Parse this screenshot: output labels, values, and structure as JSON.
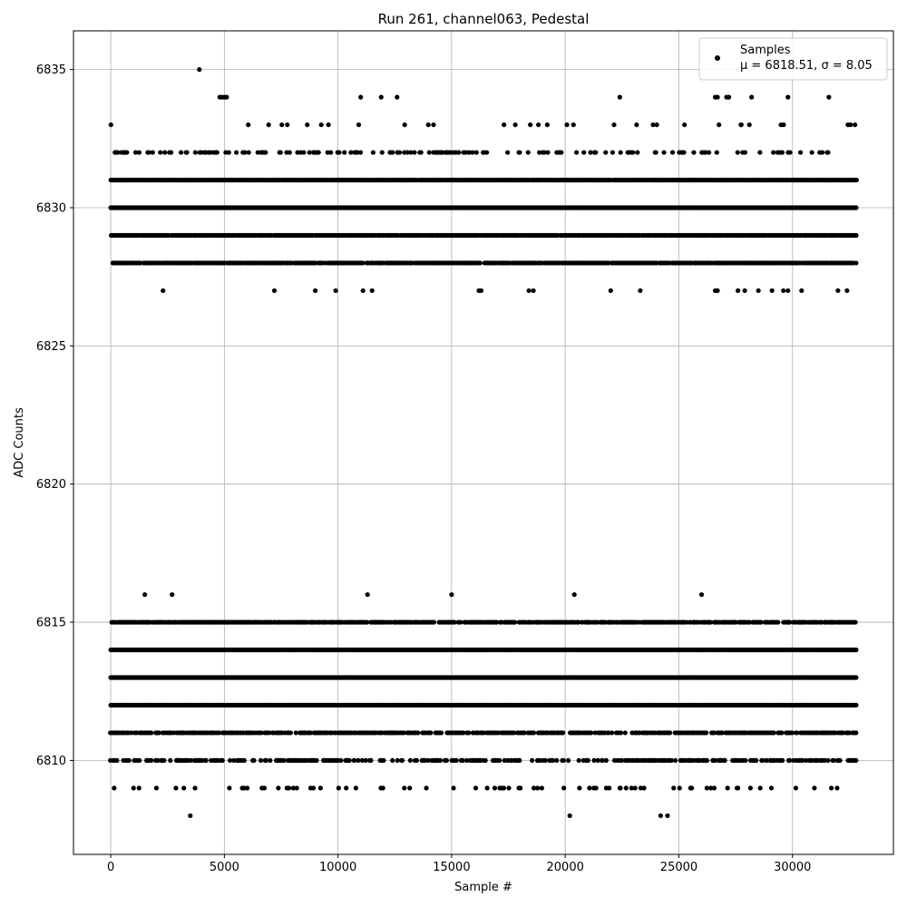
{
  "chart_data": {
    "type": "scatter",
    "title": "Run 261, channel063, Pedestal",
    "xlabel": "Sample #",
    "ylabel": "ADC Counts",
    "xlim": [
      -1640,
      34440
    ],
    "ylim": [
      6806.6,
      6836.4
    ],
    "xticks": [
      0,
      5000,
      10000,
      15000,
      20000,
      25000,
      30000
    ],
    "xtick_labels": [
      "0",
      "5000",
      "10000",
      "15000",
      "20000",
      "25000",
      "30000"
    ],
    "yticks": [
      6810,
      6815,
      6820,
      6825,
      6830,
      6835
    ],
    "ytick_labels": [
      "6810",
      "6815",
      "6820",
      "6825",
      "6830",
      "6835"
    ],
    "grid": true,
    "marker_color": "#000000",
    "n_samples": 32800,
    "legend": {
      "location": "top-right",
      "label": "Samples",
      "stats": "μ = 6818.51, σ = 8.05"
    },
    "series": [
      {
        "name": "Samples",
        "bands": [
          {
            "value": 6808,
            "density": "sparse",
            "x": [
              3500,
              20200,
              24200,
              24500
            ]
          },
          {
            "value": 6809,
            "density": 0.1
          },
          {
            "value": 6810,
            "density": 0.35
          },
          {
            "value": 6811,
            "density": 0.6
          },
          {
            "value": 6812,
            "density": 1.0
          },
          {
            "value": 6813,
            "density": 1.0
          },
          {
            "value": 6814,
            "density": 1.0
          },
          {
            "value": 6815,
            "density": 0.75
          },
          {
            "value": 6816,
            "density": "sparse",
            "x": [
              1500,
              2700,
              11300,
              15000,
              20400,
              26000
            ]
          },
          {
            "value": 6827,
            "density": "sparse",
            "x": [
              2300,
              7200,
              9000,
              9900,
              11100,
              11500,
              16200,
              16300,
              18400,
              18600,
              22000,
              23300,
              26600,
              26700,
              27600,
              27900,
              28500,
              29100,
              29600,
              29800,
              30400,
              32000,
              32400
            ]
          },
          {
            "value": 6828,
            "density": 0.8
          },
          {
            "value": 6829,
            "density": 0.9
          },
          {
            "value": 6830,
            "density": 1.0
          },
          {
            "value": 6831,
            "density": 0.95
          },
          {
            "value": 6832,
            "density": 0.2
          },
          {
            "value": 6833,
            "density": 0.05
          },
          {
            "value": 6834,
            "density": "sparse",
            "x": [
              4800,
              4900,
              5000,
              5100,
              11000,
              11900,
              12600,
              22400,
              26600,
              26700,
              27100,
              27200,
              28200,
              29800,
              31600
            ]
          },
          {
            "value": 6835,
            "density": "sparse",
            "x": [
              3900
            ]
          }
        ]
      }
    ]
  }
}
